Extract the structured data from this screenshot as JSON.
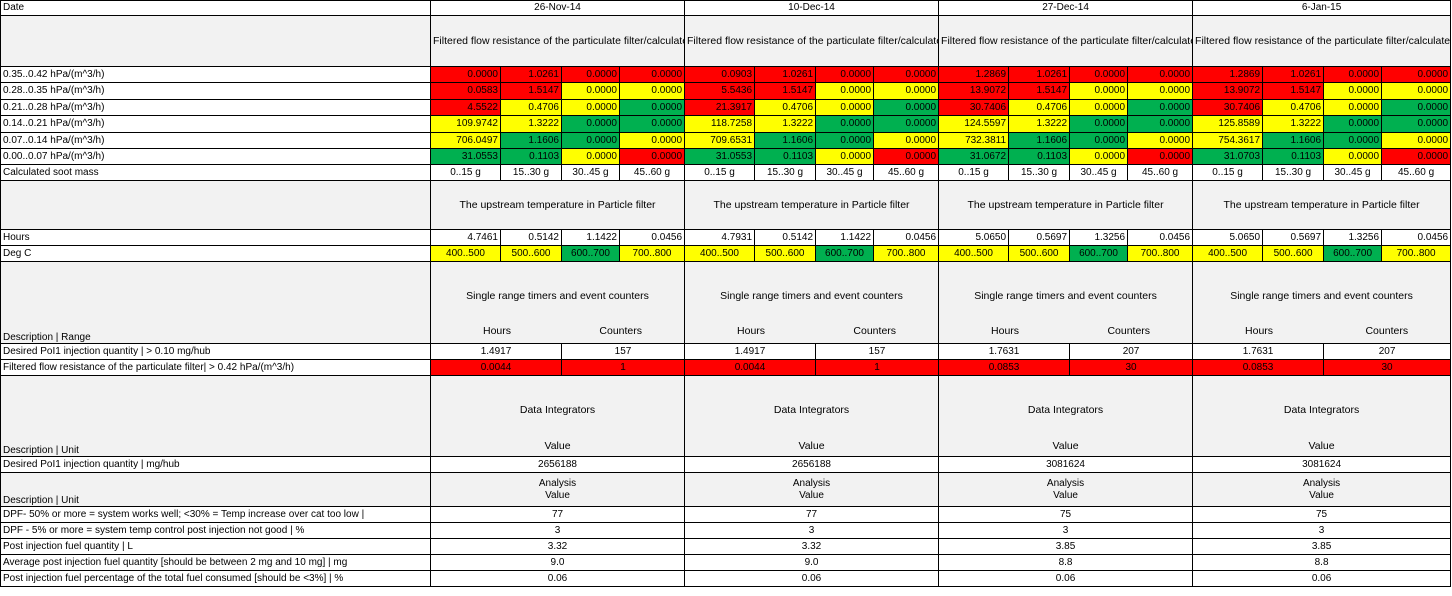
{
  "colors": {
    "red": "#ff0000",
    "yellow": "#ffff00",
    "green": "#00b050",
    "header_bg": "#f2f2f2"
  },
  "header": {
    "label": "Date",
    "dates": [
      "26-Nov-14",
      "10-Dec-14",
      "27-Dec-14",
      "6-Jan-15"
    ]
  },
  "section1": {
    "title": "Filtered flow resistance of the particulate filter/calculated soot mass in particulate filter",
    "rows": [
      {
        "label": "0.35..0.42 hPa/(m^3/h)",
        "cells": [
          [
            "0.0000",
            "r"
          ],
          [
            "1.0261",
            "r"
          ],
          [
            "0.0000",
            "r"
          ],
          [
            "0.0000",
            "r"
          ],
          [
            "0.0903",
            "r"
          ],
          [
            "1.0261",
            "r"
          ],
          [
            "0.0000",
            "r"
          ],
          [
            "0.0000",
            "r"
          ],
          [
            "1.2869",
            "r"
          ],
          [
            "1.0261",
            "r"
          ],
          [
            "0.0000",
            "r"
          ],
          [
            "0.0000",
            "r"
          ],
          [
            "1.2869",
            "r"
          ],
          [
            "1.0261",
            "r"
          ],
          [
            "0.0000",
            "r"
          ],
          [
            "0.0000",
            "r"
          ]
        ]
      },
      {
        "label": "0.28..0.35 hPa/(m^3/h)",
        "cells": [
          [
            "0.0583",
            "r"
          ],
          [
            "1.5147",
            "r"
          ],
          [
            "0.0000",
            "y"
          ],
          [
            "0.0000",
            "y"
          ],
          [
            "5.5436",
            "r"
          ],
          [
            "1.5147",
            "r"
          ],
          [
            "0.0000",
            "y"
          ],
          [
            "0.0000",
            "y"
          ],
          [
            "13.9072",
            "r"
          ],
          [
            "1.5147",
            "r"
          ],
          [
            "0.0000",
            "y"
          ],
          [
            "0.0000",
            "y"
          ],
          [
            "13.9072",
            "r"
          ],
          [
            "1.5147",
            "r"
          ],
          [
            "0.0000",
            "y"
          ],
          [
            "0.0000",
            "y"
          ]
        ]
      },
      {
        "label": "0.21..0.28 hPa/(m^3/h)",
        "cells": [
          [
            "4.5522",
            "r"
          ],
          [
            "0.4706",
            "y"
          ],
          [
            "0.0000",
            "y"
          ],
          [
            "0.0000",
            "g"
          ],
          [
            "21.3917",
            "r"
          ],
          [
            "0.4706",
            "y"
          ],
          [
            "0.0000",
            "y"
          ],
          [
            "0.0000",
            "g"
          ],
          [
            "30.7406",
            "r"
          ],
          [
            "0.4706",
            "y"
          ],
          [
            "0.0000",
            "y"
          ],
          [
            "0.0000",
            "g"
          ],
          [
            "30.7406",
            "r"
          ],
          [
            "0.4706",
            "y"
          ],
          [
            "0.0000",
            "y"
          ],
          [
            "0.0000",
            "g"
          ]
        ]
      },
      {
        "label": "0.14..0.21 hPa/(m^3/h)",
        "cells": [
          [
            "109.9742",
            "y"
          ],
          [
            "1.3222",
            "y"
          ],
          [
            "0.0000",
            "g"
          ],
          [
            "0.0000",
            "g"
          ],
          [
            "118.7258",
            "y"
          ],
          [
            "1.3222",
            "y"
          ],
          [
            "0.0000",
            "g"
          ],
          [
            "0.0000",
            "g"
          ],
          [
            "124.5597",
            "y"
          ],
          [
            "1.3222",
            "y"
          ],
          [
            "0.0000",
            "g"
          ],
          [
            "0.0000",
            "g"
          ],
          [
            "125.8589",
            "y"
          ],
          [
            "1.3222",
            "y"
          ],
          [
            "0.0000",
            "g"
          ],
          [
            "0.0000",
            "g"
          ]
        ]
      },
      {
        "label": "0.07..0.14 hPa/(m^3/h)",
        "cells": [
          [
            "706.0497",
            "y"
          ],
          [
            "1.1606",
            "g"
          ],
          [
            "0.0000",
            "g"
          ],
          [
            "0.0000",
            "y"
          ],
          [
            "709.6531",
            "y"
          ],
          [
            "1.1606",
            "g"
          ],
          [
            "0.0000",
            "g"
          ],
          [
            "0.0000",
            "y"
          ],
          [
            "732.3811",
            "y"
          ],
          [
            "1.1606",
            "g"
          ],
          [
            "0.0000",
            "g"
          ],
          [
            "0.0000",
            "y"
          ],
          [
            "754.3617",
            "y"
          ],
          [
            "1.1606",
            "g"
          ],
          [
            "0.0000",
            "g"
          ],
          [
            "0.0000",
            "y"
          ]
        ]
      },
      {
        "label": "0.00..0.07 hPa/(m^3/h)",
        "cells": [
          [
            "31.0553",
            "g"
          ],
          [
            "0.1103",
            "g"
          ],
          [
            "0.0000",
            "y"
          ],
          [
            "0.0000",
            "r"
          ],
          [
            "31.0553",
            "g"
          ],
          [
            "0.1103",
            "g"
          ],
          [
            "0.0000",
            "y"
          ],
          [
            "0.0000",
            "r"
          ],
          [
            "31.0672",
            "g"
          ],
          [
            "0.1103",
            "g"
          ],
          [
            "0.0000",
            "y"
          ],
          [
            "0.0000",
            "r"
          ],
          [
            "31.0703",
            "g"
          ],
          [
            "0.1103",
            "g"
          ],
          [
            "0.0000",
            "y"
          ],
          [
            "0.0000",
            "r"
          ]
        ]
      }
    ],
    "soot_label": "Calculated soot mass",
    "soot_ranges": [
      "0..15 g",
      "15..30 g",
      "30..45 g",
      "45..60 g"
    ]
  },
  "section2": {
    "title": "The upstream temperature in Particle filter",
    "hours_label": "Hours",
    "hours": [
      [
        "4.7461",
        "0.5142",
        "1.1422",
        "0.0456"
      ],
      [
        "4.7931",
        "0.5142",
        "1.1422",
        "0.0456"
      ],
      [
        "5.0650",
        "0.5697",
        "1.3256",
        "0.0456"
      ],
      [
        "5.0650",
        "0.5697",
        "1.3256",
        "0.0456"
      ]
    ],
    "degc_label": "Deg C",
    "temp_ranges": [
      [
        "400..500",
        "y"
      ],
      [
        "500..600",
        "y"
      ],
      [
        "600..700",
        "g"
      ],
      [
        "700..800",
        "y"
      ]
    ]
  },
  "section3": {
    "title": "Single range timers and event counters",
    "desc_label": "Description | Range",
    "col_hours": "Hours",
    "col_counters": "Counters",
    "row1": {
      "label": "Desired PoI1 injection quantity | > 0.10 mg/hub",
      "values": [
        [
          "1.4917",
          "157"
        ],
        [
          "1.4917",
          "157"
        ],
        [
          "1.7631",
          "207"
        ],
        [
          "1.7631",
          "207"
        ]
      ]
    },
    "row2": {
      "label": "Filtered flow resistance of the particulate filter| > 0.42 hPa/(m^3/h)",
      "values": [
        [
          "0.0044",
          "1"
        ],
        [
          "0.0044",
          "1"
        ],
        [
          "0.0853",
          "30"
        ],
        [
          "0.0853",
          "30"
        ]
      ]
    }
  },
  "section4": {
    "title": "Data Integrators",
    "desc_label": "Description | Unit",
    "col_value": "Value",
    "row1": {
      "label": "Desired PoI1 injection quantity | mg/hub",
      "values": [
        "2656188",
        "2656188",
        "3081624",
        "3081624"
      ]
    }
  },
  "section5": {
    "desc_label": "Description | Unit",
    "col_analysis": "Analysis",
    "col_value": "Value",
    "rows": [
      {
        "label": "DPF- 50% or more  = system works well; <30%  = Temp increase over cat too low |",
        "values": [
          "77",
          "77",
          "75",
          "75"
        ]
      },
      {
        "label": "DPF - 5% or more = system temp control post injection not good | %",
        "values": [
          "3",
          "3",
          "3",
          "3"
        ]
      },
      {
        "label": "Post injection fuel quantity | L",
        "values": [
          "3.32",
          "3.32",
          "3.85",
          "3.85"
        ]
      },
      {
        "label": "Average post injection fuel quantity [should be between 2 mg and 10 mg] | mg",
        "values": [
          "9.0",
          "9.0",
          "8.8",
          "8.8"
        ]
      },
      {
        "label": "Post injection fuel percentage of the total fuel consumed [should be <3%] | %",
        "values": [
          "0.06",
          "0.06",
          "0.06",
          "0.06"
        ]
      }
    ]
  }
}
